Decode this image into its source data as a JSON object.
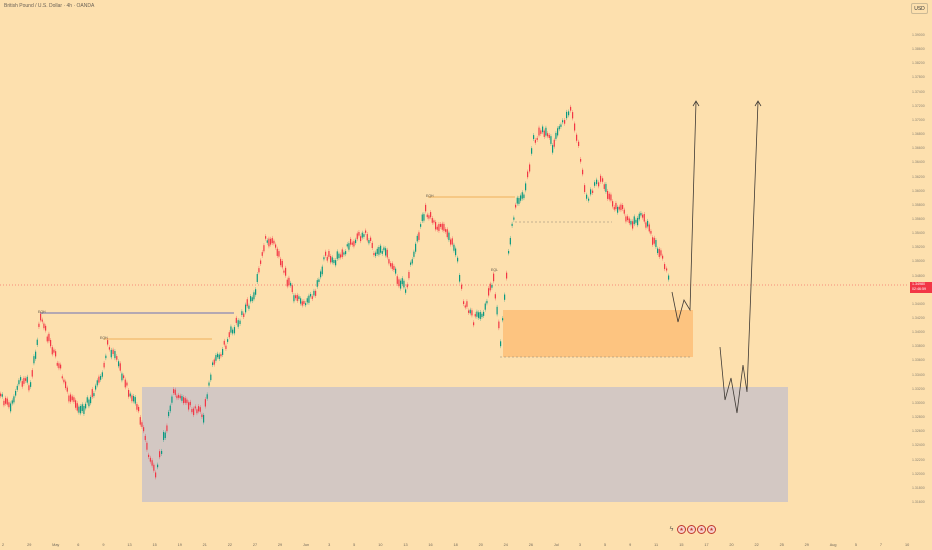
{
  "header": {
    "symbol_title": "British Pound / U.S. Dollar · 4h · OANDA",
    "currency": "USD"
  },
  "colors": {
    "background": "#fde0ae",
    "candle_up": "#089981",
    "candle_down": "#f23645",
    "demand_zone": "#fdc480",
    "support_zone": "#d3c8c3",
    "projection_line": "#3f3a35",
    "level_line_blue": "#3b4cb8",
    "level_line_orange": "#e8a03e"
  },
  "price_axis": {
    "ticks": [
      "1.39000",
      "1.38600",
      "1.38200",
      "1.37800",
      "1.37400",
      "1.37200",
      "1.37000",
      "1.36800",
      "1.36600",
      "1.36400",
      "1.36200",
      "1.36000",
      "1.35800",
      "1.35600",
      "1.35400",
      "1.35200",
      "1.35000",
      "1.34800",
      "1.34600",
      "1.34400",
      "1.34200",
      "1.34000",
      "1.33800",
      "1.33600",
      "1.33400",
      "1.33200",
      "1.33000",
      "1.32800",
      "1.32600",
      "1.32400",
      "1.32200",
      "1.32000",
      "1.31800",
      "1.31600"
    ],
    "current_price": "1.34980",
    "countdown": "02:46:59"
  },
  "level_labels": {
    "eqh_high": "EQH",
    "eqh_left": "EQH",
    "eqh_mid": "EQH",
    "eqh_low": "EQL"
  },
  "time_axis": {
    "labels": [
      "2",
      "29",
      "May",
      "6",
      "9",
      "13",
      "15",
      "19",
      "21",
      "22",
      "27",
      "29",
      "Jun",
      "3",
      "5",
      "10",
      "13",
      "16",
      "18",
      "20",
      "24",
      "26",
      "Jul",
      "3",
      "5",
      "9",
      "11",
      "15",
      "17",
      "20",
      "22",
      "25",
      "29",
      "Aug",
      "5",
      "7",
      "10"
    ]
  },
  "events": {
    "icons": [
      "flash-icon",
      "flag-us-icon",
      "flag-us-icon",
      "flag-us-icon",
      "flag-us-icon"
    ]
  }
}
